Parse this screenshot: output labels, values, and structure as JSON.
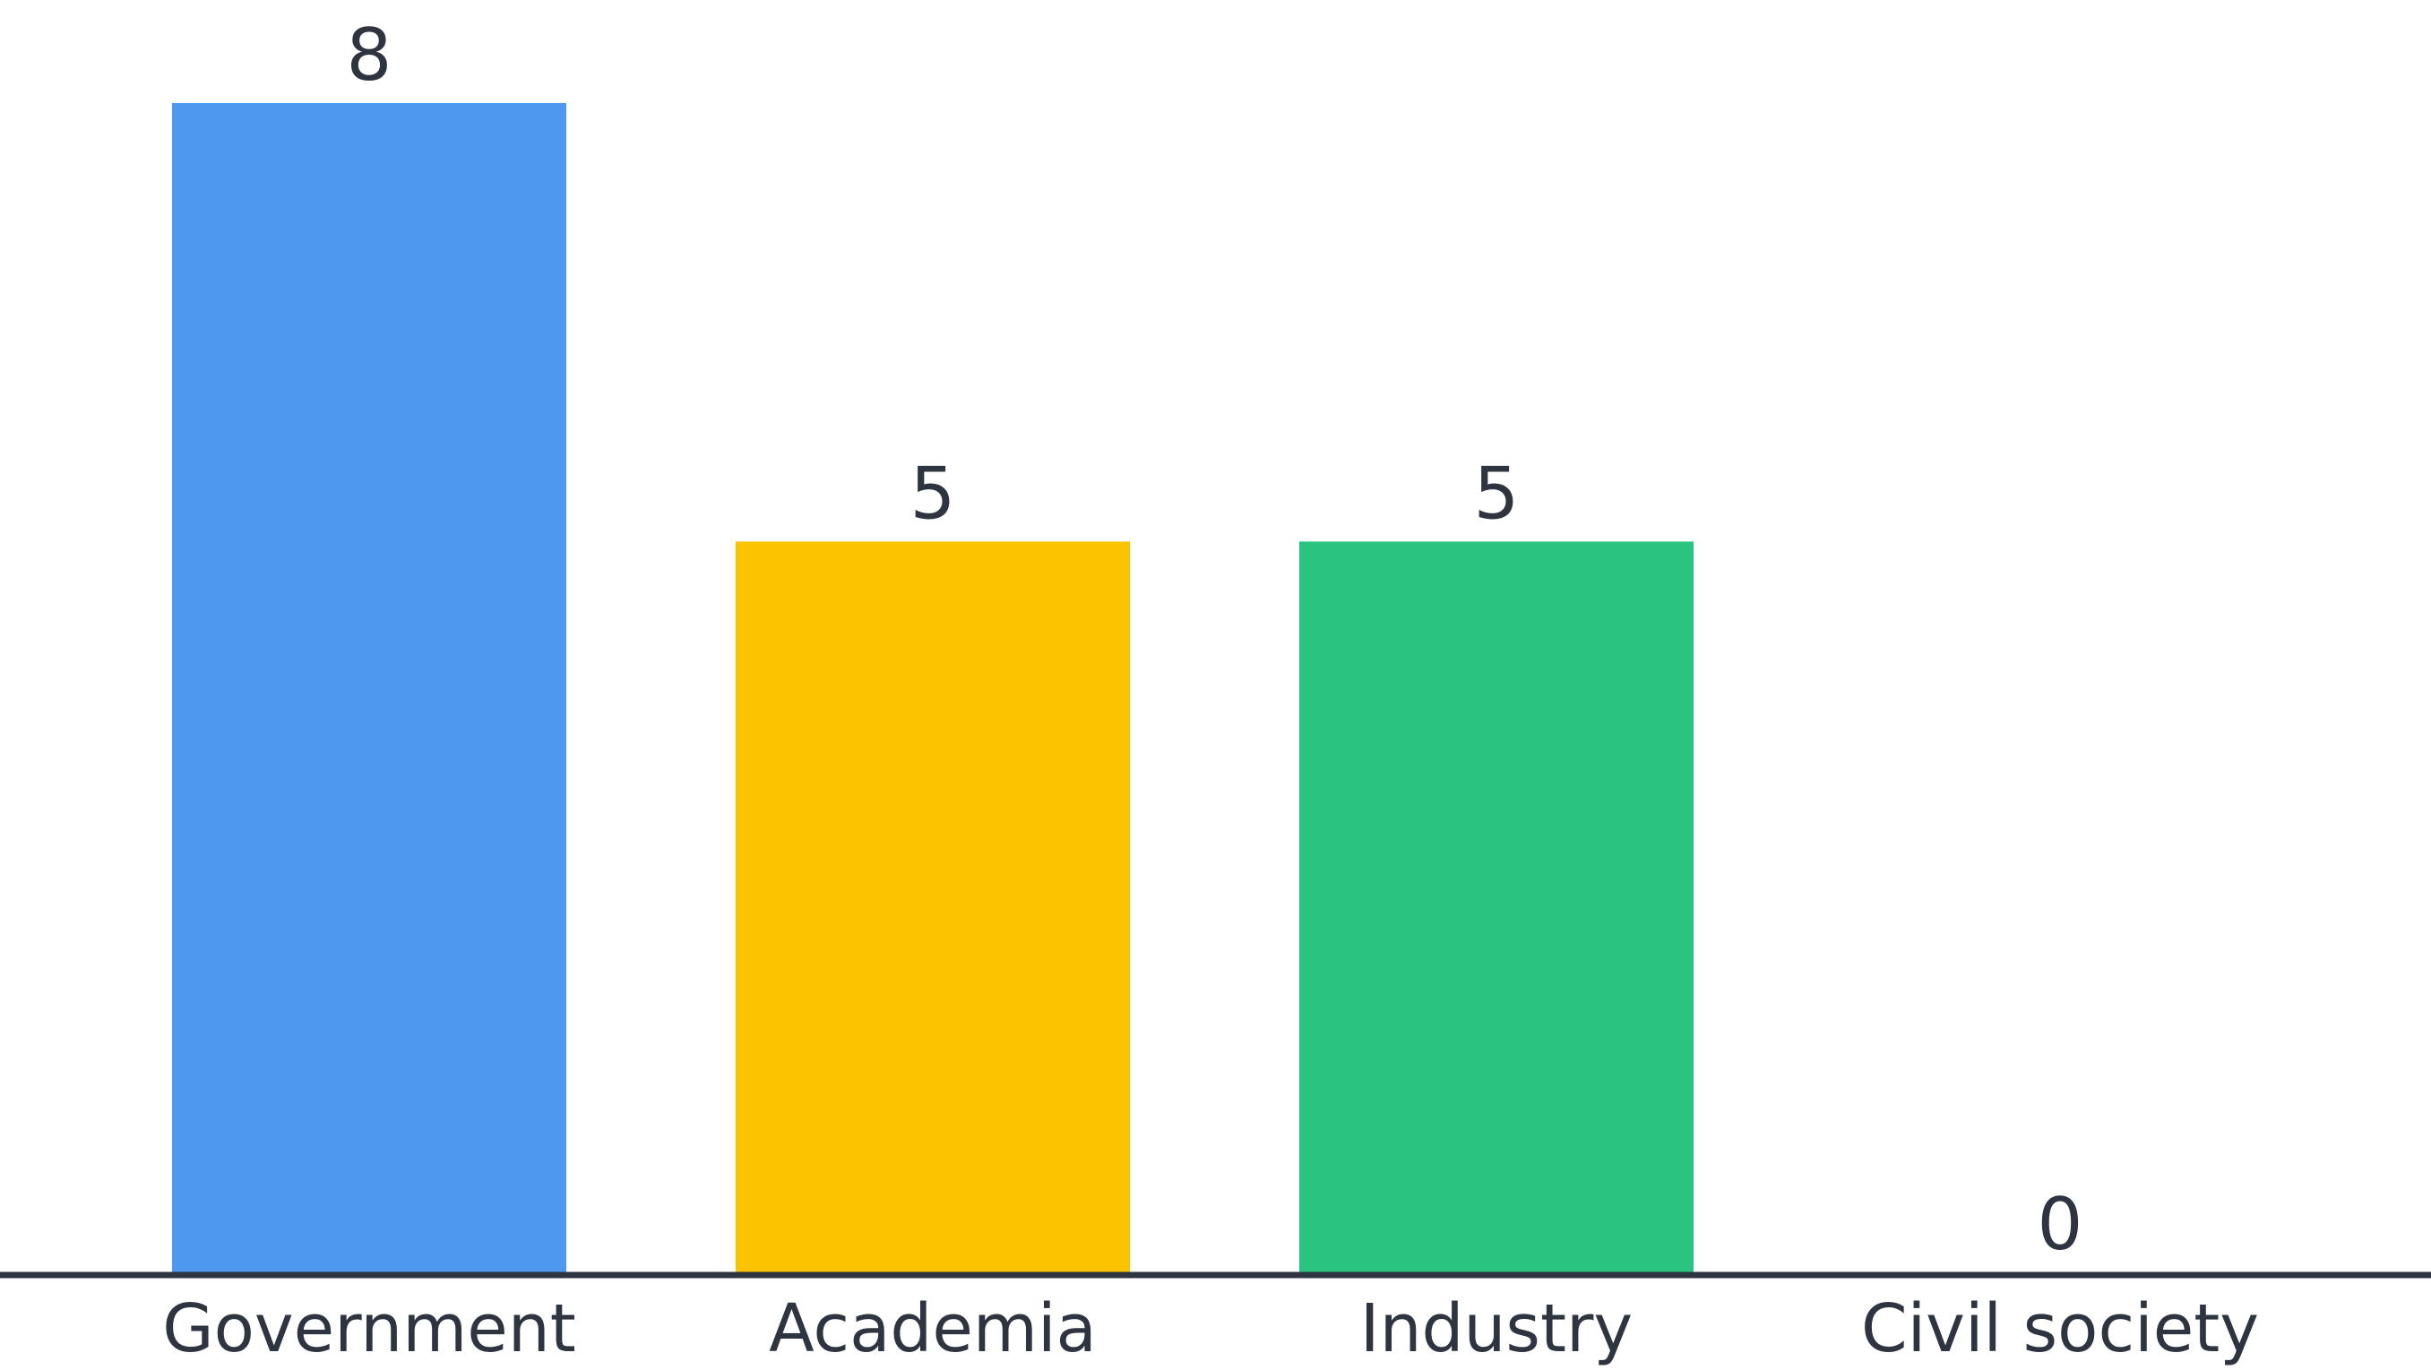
{
  "chart_data": {
    "type": "bar",
    "categories": [
      "Government",
      "Academia",
      "Industry",
      "Civil society"
    ],
    "values": [
      8,
      5,
      5,
      0
    ],
    "value_labels": [
      "8",
      "5",
      "5",
      "0"
    ],
    "colors": [
      "#4F98EF",
      "#FCC400",
      "#2AC37F",
      "#2AC37F"
    ],
    "axis_color": "#2F3540",
    "title": "",
    "xlabel": "",
    "ylabel": "",
    "ylim": [
      0,
      8
    ],
    "grid": false,
    "legend": "none"
  }
}
